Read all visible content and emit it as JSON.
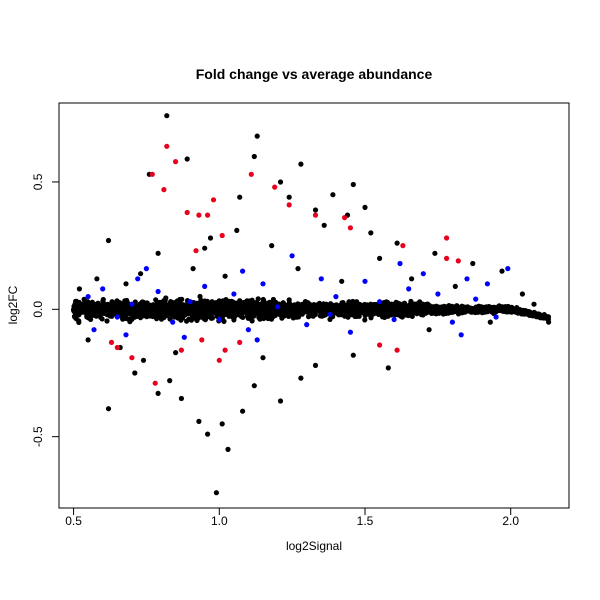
{
  "chart_data": {
    "type": "scatter",
    "title": "Fold change vs average abundance",
    "xlabel": "log2Signal",
    "ylabel": "log2FC",
    "xlim": [
      0.45,
      2.2
    ],
    "ylim": [
      -0.78,
      0.81
    ],
    "x_ticks": [
      {
        "value": 0.5,
        "label": "0.5"
      },
      {
        "value": 1.0,
        "label": "1.0"
      },
      {
        "value": 1.5,
        "label": "1.5"
      },
      {
        "value": 2.0,
        "label": "2.0"
      }
    ],
    "y_ticks": [
      {
        "value": -0.5,
        "label": "-0.5"
      },
      {
        "value": 0.0,
        "label": "0.0"
      },
      {
        "value": 0.5,
        "label": "0.5"
      }
    ],
    "grid": false,
    "legend": "none",
    "colors": {
      "black": "#000000",
      "blue": "#0000ff",
      "red": "#e8001c"
    },
    "series": [
      {
        "color": "black",
        "points": [
          [
            0.82,
            0.76
          ],
          [
            1.13,
            0.68
          ],
          [
            0.89,
            0.59
          ],
          [
            1.12,
            0.6
          ],
          [
            1.28,
            0.57
          ],
          [
            0.76,
            0.53
          ],
          [
            1.46,
            0.49
          ],
          [
            1.21,
            0.5
          ],
          [
            1.39,
            0.45
          ],
          [
            1.24,
            0.44
          ],
          [
            1.33,
            0.39
          ],
          [
            1.44,
            0.37
          ],
          [
            0.62,
            0.27
          ],
          [
            0.79,
            0.22
          ],
          [
            0.95,
            0.24
          ],
          [
            1.06,
            0.31
          ],
          [
            1.18,
            0.25
          ],
          [
            1.52,
            0.3
          ],
          [
            1.61,
            0.26
          ],
          [
            1.87,
            0.18
          ],
          [
            1.74,
            0.22
          ],
          [
            1.97,
            0.15
          ],
          [
            0.58,
            0.12
          ],
          [
            0.68,
            0.1
          ],
          [
            0.73,
            0.14
          ],
          [
            0.91,
            0.16
          ],
          [
            1.02,
            0.13
          ],
          [
            1.27,
            0.16
          ],
          [
            1.42,
            0.11
          ],
          [
            1.66,
            0.12
          ],
          [
            1.81,
            0.09
          ],
          [
            2.04,
            0.06
          ],
          [
            0.55,
            -0.12
          ],
          [
            0.66,
            -0.15
          ],
          [
            0.74,
            -0.2
          ],
          [
            0.79,
            -0.33
          ],
          [
            0.83,
            -0.28
          ],
          [
            0.87,
            -0.35
          ],
          [
            0.93,
            -0.44
          ],
          [
            0.96,
            -0.49
          ],
          [
            1.01,
            -0.45
          ],
          [
            1.03,
            -0.55
          ],
          [
            1.08,
            -0.4
          ],
          [
            0.99,
            -0.72
          ],
          [
            1.12,
            -0.3
          ],
          [
            1.21,
            -0.36
          ],
          [
            1.33,
            -0.22
          ],
          [
            1.46,
            -0.18
          ],
          [
            1.58,
            -0.23
          ],
          [
            0.62,
            -0.39
          ],
          [
            0.71,
            -0.25
          ],
          [
            1.15,
            -0.19
          ],
          [
            1.28,
            -0.27
          ],
          [
            0.52,
            0.08
          ],
          [
            0.85,
            -0.17
          ],
          [
            1.72,
            -0.08
          ],
          [
            1.93,
            -0.05
          ],
          [
            2.1,
            -0.03
          ],
          [
            2.13,
            -0.05
          ],
          [
            2.08,
            0.02
          ],
          [
            1.5,
            0.4
          ],
          [
            1.36,
            0.33
          ],
          [
            1.55,
            0.2
          ],
          [
            0.97,
            0.28
          ],
          [
            1.07,
            0.44
          ]
        ]
      },
      {
        "color": "red",
        "points": [
          [
            0.82,
            0.64
          ],
          [
            0.85,
            0.58
          ],
          [
            0.77,
            0.53
          ],
          [
            1.11,
            0.53
          ],
          [
            1.19,
            0.48
          ],
          [
            0.81,
            0.47
          ],
          [
            0.98,
            0.43
          ],
          [
            1.24,
            0.41
          ],
          [
            0.89,
            0.38
          ],
          [
            0.93,
            0.37
          ],
          [
            1.33,
            0.37
          ],
          [
            0.96,
            0.37
          ],
          [
            1.43,
            0.36
          ],
          [
            1.45,
            0.32
          ],
          [
            1.78,
            0.28
          ],
          [
            1.63,
            0.25
          ],
          [
            1.01,
            0.29
          ],
          [
            0.92,
            0.23
          ],
          [
            1.78,
            0.2
          ],
          [
            1.82,
            0.19
          ],
          [
            0.7,
            -0.19
          ],
          [
            0.65,
            -0.15
          ],
          [
            0.63,
            -0.13
          ],
          [
            0.94,
            -0.12
          ],
          [
            1.02,
            -0.16
          ],
          [
            1.07,
            -0.13
          ],
          [
            0.78,
            -0.29
          ],
          [
            0.87,
            -0.16
          ],
          [
            1.0,
            -0.2
          ],
          [
            1.55,
            -0.14
          ],
          [
            1.61,
            -0.16
          ]
        ]
      },
      {
        "color": "blue",
        "points": [
          [
            0.55,
            0.05
          ],
          [
            0.6,
            0.08
          ],
          [
            0.65,
            -0.03
          ],
          [
            0.7,
            0.02
          ],
          [
            0.75,
            0.16
          ],
          [
            0.79,
            0.07
          ],
          [
            0.84,
            -0.05
          ],
          [
            0.9,
            0.03
          ],
          [
            0.95,
            0.09
          ],
          [
            1.0,
            -0.04
          ],
          [
            1.05,
            0.06
          ],
          [
            1.1,
            -0.08
          ],
          [
            1.15,
            0.1
          ],
          [
            1.2,
            0.01
          ],
          [
            1.25,
            0.21
          ],
          [
            1.3,
            -0.06
          ],
          [
            1.35,
            0.12
          ],
          [
            1.4,
            0.05
          ],
          [
            1.45,
            -0.09
          ],
          [
            1.5,
            0.11
          ],
          [
            1.55,
            0.03
          ],
          [
            1.6,
            -0.04
          ],
          [
            1.65,
            0.08
          ],
          [
            1.7,
            0.14
          ],
          [
            1.75,
            0.06
          ],
          [
            1.8,
            -0.05
          ],
          [
            1.85,
            0.12
          ],
          [
            1.88,
            0.04
          ],
          [
            1.95,
            -0.03
          ],
          [
            1.99,
            0.16
          ],
          [
            0.57,
            -0.08
          ],
          [
            0.68,
            -0.1
          ],
          [
            0.88,
            -0.11
          ],
          [
            1.13,
            -0.12
          ],
          [
            1.38,
            -0.02
          ],
          [
            1.62,
            0.18
          ],
          [
            1.92,
            0.1
          ],
          [
            0.72,
            0.12
          ],
          [
            1.08,
            0.15
          ],
          [
            1.83,
            -0.1
          ]
        ]
      }
    ]
  }
}
